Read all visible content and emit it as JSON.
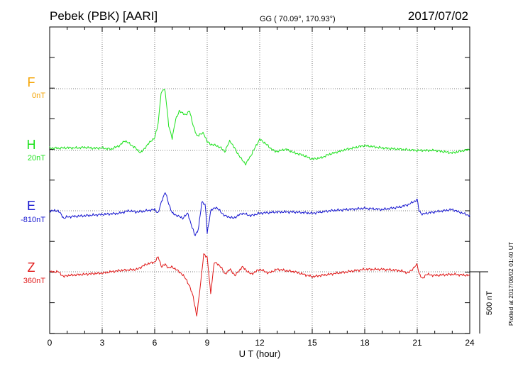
{
  "chart_data": {
    "type": "line",
    "title": "Pebek (PBK)  [AARI]",
    "subtitle": "GG ( 70.09°, 170.93°)",
    "date": "2017/07/02",
    "xlabel": "U T (hour)",
    "xlim": [
      0,
      24
    ],
    "x_ticks": [
      "0",
      "3",
      "6",
      "9",
      "12",
      "15",
      "18",
      "21",
      "24"
    ],
    "scale_label": "500 nT",
    "scale_nT": 500,
    "plotted_note": "Plotted at 2017/08/02 01:40 UT",
    "grid": true,
    "baseline_unit": "nT",
    "series": [
      {
        "name": "F",
        "baseline_label": "0nT",
        "baseline_value": 0,
        "color": "#f5a300",
        "x": [],
        "values": []
      },
      {
        "name": "H",
        "baseline_label": "20nT",
        "baseline_value": 20,
        "color": "#1ee21e",
        "x": [
          0,
          0.5,
          1,
          1.5,
          2,
          2.5,
          3,
          3.5,
          4,
          4.3,
          4.6,
          4.9,
          5.2,
          5.5,
          5.8,
          6,
          6.2,
          6.35,
          6.5,
          6.6,
          6.8,
          7,
          7.2,
          7.4,
          7.6,
          7.8,
          8,
          8.2,
          8.4,
          8.6,
          8.8,
          9,
          9.2,
          9.5,
          9.8,
          10,
          10.3,
          10.6,
          10.9,
          11.2,
          11.5,
          11.8,
          12,
          12.3,
          12.6,
          12.9,
          13.2,
          13.5,
          14,
          14.5,
          15,
          15.5,
          16,
          17,
          18,
          19,
          20,
          21,
          22,
          23,
          24
        ],
        "values": [
          20,
          18,
          22,
          20,
          25,
          18,
          20,
          10,
          40,
          80,
          50,
          20,
          -20,
          30,
          80,
          100,
          220,
          450,
          500,
          480,
          200,
          100,
          250,
          320,
          300,
          290,
          320,
          200,
          120,
          130,
          140,
          70,
          50,
          40,
          20,
          -10,
          80,
          10,
          -60,
          -110,
          -40,
          40,
          90,
          60,
          20,
          -10,
          0,
          10,
          -20,
          -40,
          -70,
          -60,
          -30,
          10,
          40,
          20,
          10,
          0,
          0,
          -20,
          10
        ]
      },
      {
        "name": "E",
        "baseline_label": "-810nT",
        "baseline_value": -810,
        "color": "#1616d0",
        "x": [
          0,
          0.5,
          0.8,
          1,
          2,
          3,
          4,
          4.5,
          5,
          5.5,
          6,
          6.2,
          6.4,
          6.6,
          6.8,
          7,
          7.3,
          7.6,
          7.9,
          8.1,
          8.3,
          8.5,
          8.7,
          8.9,
          9,
          9.2,
          9.5,
          10,
          10.5,
          11,
          11.5,
          12,
          13,
          14,
          15,
          16,
          17,
          18,
          19,
          20,
          20.5,
          21,
          21.1,
          21.3,
          21.5,
          22,
          23,
          24
        ],
        "values": [
          0,
          0,
          -60,
          -50,
          -40,
          -30,
          -20,
          0,
          -10,
          0,
          10,
          -20,
          80,
          150,
          60,
          -20,
          -40,
          -60,
          -20,
          -120,
          -200,
          -150,
          80,
          40,
          -180,
          0,
          30,
          -40,
          -60,
          -20,
          -40,
          -20,
          -10,
          -10,
          -20,
          0,
          10,
          20,
          10,
          30,
          50,
          90,
          0,
          -30,
          -20,
          -10,
          10,
          -40
        ]
      },
      {
        "name": "Z",
        "baseline_label": "360nT",
        "baseline_value": 360,
        "color": "#e01818",
        "x": [
          0,
          0.5,
          0.8,
          1,
          2,
          3,
          4,
          5,
          5.5,
          6,
          6.1,
          6.2,
          6.4,
          6.6,
          6.8,
          7,
          7.2,
          7.5,
          7.8,
          8,
          8.2,
          8.4,
          8.6,
          8.8,
          9,
          9.2,
          9.4,
          9.6,
          9.8,
          10,
          10.3,
          10.6,
          11,
          11.5,
          12,
          12.5,
          13,
          14,
          15,
          16,
          17,
          18,
          19,
          20,
          20.5,
          21,
          21.1,
          21.3,
          21.5,
          22,
          23,
          24
        ],
        "values": [
          0,
          0,
          -40,
          -30,
          -20,
          -10,
          10,
          20,
          60,
          80,
          100,
          120,
          40,
          60,
          30,
          40,
          20,
          -10,
          -60,
          -120,
          -200,
          -360,
          -120,
          140,
          120,
          -180,
          80,
          60,
          40,
          -20,
          20,
          -30,
          40,
          -20,
          20,
          -10,
          20,
          0,
          -40,
          -20,
          0,
          20,
          20,
          10,
          -10,
          60,
          -10,
          -60,
          -20,
          -30,
          -20,
          -30
        ]
      }
    ]
  }
}
